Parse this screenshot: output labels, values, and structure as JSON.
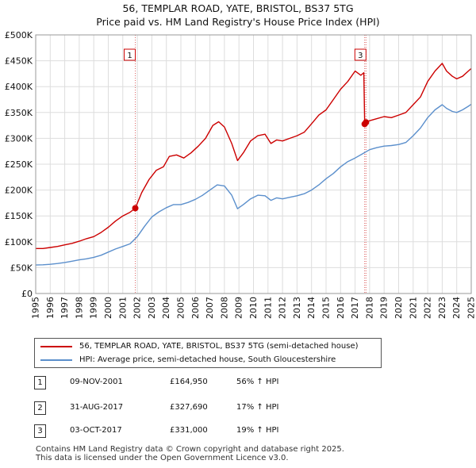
{
  "title_line1": "56, TEMPLAR ROAD, YATE, BRISTOL, BS37 5TG",
  "title_line2": "Price paid vs. HM Land Registry's House Price Index (HPI)",
  "colors": {
    "property": "#cc0000",
    "hpi": "#5b8fcc",
    "grid": "#dddddd",
    "marker": "#cc0000"
  },
  "chart_data": {
    "type": "line",
    "title": "Price paid vs. HM Land Registry's House Price Index (HPI)",
    "xlabel": "",
    "ylabel": "",
    "xlim": [
      1995,
      2025
    ],
    "ylim": [
      0,
      500000
    ],
    "y_ticks": [
      0,
      50000,
      100000,
      150000,
      200000,
      250000,
      300000,
      350000,
      400000,
      450000,
      500000
    ],
    "y_tick_labels": [
      "£0",
      "£50K",
      "£100K",
      "£150K",
      "£200K",
      "£250K",
      "£300K",
      "£350K",
      "£400K",
      "£450K",
      "£500K"
    ],
    "x_ticks": [
      1995,
      1996,
      1997,
      1998,
      1999,
      2000,
      2001,
      2002,
      2003,
      2004,
      2005,
      2006,
      2007,
      2008,
      2009,
      2010,
      2011,
      2012,
      2013,
      2014,
      2015,
      2016,
      2017,
      2018,
      2019,
      2020,
      2021,
      2022,
      2023,
      2024,
      2025
    ],
    "grid": true,
    "series": [
      {
        "name": "56, TEMPLAR ROAD, YATE, BRISTOL, BS37 5TG (semi-detached house)",
        "x": [
          1995.0,
          1995.5,
          1996.0,
          1996.5,
          1997.0,
          1997.5,
          1998.0,
          1998.5,
          1999.0,
          1999.5,
          2000.0,
          2000.5,
          2001.0,
          2001.5,
          2001.86,
          2002.3,
          2002.8,
          2003.3,
          2003.8,
          2004.2,
          2004.7,
          2005.2,
          2005.7,
          2006.2,
          2006.7,
          2007.2,
          2007.6,
          2008.0,
          2008.5,
          2008.9,
          2009.3,
          2009.8,
          2010.3,
          2010.8,
          2011.2,
          2011.6,
          2012.0,
          2012.5,
          2013.0,
          2013.5,
          2014.0,
          2014.5,
          2015.0,
          2015.5,
          2016.0,
          2016.5,
          2017.0,
          2017.4,
          2017.6,
          2017.66,
          2017.75,
          2018.0,
          2018.5,
          2019.0,
          2019.5,
          2020.0,
          2020.5,
          2021.0,
          2021.5,
          2022.0,
          2022.5,
          2023.0,
          2023.3,
          2023.7,
          2024.0,
          2024.4,
          2024.8,
          2025.0
        ],
        "values": [
          87000,
          87000,
          89000,
          91000,
          94000,
          97000,
          101000,
          106000,
          110000,
          118000,
          128000,
          140000,
          150000,
          157000,
          164950,
          195000,
          220000,
          238000,
          245000,
          265000,
          268000,
          262000,
          272000,
          285000,
          300000,
          325000,
          332000,
          322000,
          290000,
          257000,
          272000,
          295000,
          305000,
          308000,
          290000,
          297000,
          295000,
          300000,
          305000,
          312000,
          328000,
          345000,
          355000,
          375000,
          395000,
          410000,
          430000,
          422000,
          427000,
          327690,
          331000,
          334000,
          338000,
          342000,
          340000,
          345000,
          350000,
          365000,
          380000,
          410000,
          430000,
          445000,
          430000,
          420000,
          415000,
          420000,
          430000,
          435000
        ]
      },
      {
        "name": "HPI: Average price, semi-detached house, South Gloucestershire",
        "x": [
          1995.0,
          1995.5,
          1996.0,
          1996.5,
          1997.0,
          1997.5,
          1998.0,
          1998.5,
          1999.0,
          1999.5,
          2000.0,
          2000.5,
          2001.0,
          2001.5,
          2002.0,
          2002.5,
          2003.0,
          2003.5,
          2004.0,
          2004.5,
          2005.0,
          2005.5,
          2006.0,
          2006.5,
          2007.0,
          2007.5,
          2008.0,
          2008.5,
          2008.9,
          2009.3,
          2009.8,
          2010.3,
          2010.8,
          2011.2,
          2011.6,
          2012.0,
          2012.5,
          2013.0,
          2013.5,
          2014.0,
          2014.5,
          2015.0,
          2015.5,
          2016.0,
          2016.5,
          2017.0,
          2017.5,
          2018.0,
          2018.5,
          2019.0,
          2019.5,
          2020.0,
          2020.5,
          2021.0,
          2021.5,
          2022.0,
          2022.5,
          2023.0,
          2023.3,
          2023.7,
          2024.0,
          2024.4,
          2024.8,
          2025.0
        ],
        "values": [
          55000,
          55500,
          56500,
          58000,
          60000,
          62500,
          65000,
          67000,
          70000,
          74000,
          80000,
          86000,
          91000,
          96000,
          110000,
          130000,
          148000,
          158000,
          166000,
          172000,
          172000,
          176000,
          182000,
          190000,
          200000,
          210000,
          208000,
          190000,
          164000,
          172000,
          183000,
          190000,
          189000,
          180000,
          185000,
          183000,
          186000,
          189000,
          193000,
          200000,
          210000,
          222000,
          232000,
          245000,
          255000,
          262000,
          270000,
          278000,
          282000,
          285000,
          286000,
          288000,
          292000,
          305000,
          320000,
          340000,
          355000,
          365000,
          358000,
          352000,
          350000,
          355000,
          362000,
          366000
        ]
      }
    ],
    "transactions": [
      {
        "marker": "1",
        "x": 2001.86,
        "date": "09-NOV-2001",
        "price": 164950,
        "price_label": "£164,950",
        "hpi_change": "56% ↑ HPI"
      },
      {
        "marker": "2",
        "x": 2017.66,
        "date": "31-AUG-2017",
        "price": 327690,
        "price_label": "£327,690",
        "hpi_change": "17% ↑ HPI"
      },
      {
        "marker": "3",
        "x": 2017.75,
        "date": "03-OCT-2017",
        "price": 331000,
        "price_label": "£331,000",
        "hpi_change": "19% ↑ HPI"
      }
    ],
    "chart_markers_shown": [
      "1",
      "3"
    ],
    "legend_position": "below"
  },
  "legend": {
    "property_label": "56, TEMPLAR ROAD, YATE, BRISTOL, BS37 5TG (semi-detached house)",
    "hpi_label": "HPI: Average price, semi-detached house, South Gloucestershire"
  },
  "table": [
    {
      "marker": "1",
      "date": "09-NOV-2001",
      "price": "£164,950",
      "hpi": "56% ↑ HPI"
    },
    {
      "marker": "2",
      "date": "31-AUG-2017",
      "price": "£327,690",
      "hpi": "17% ↑ HPI"
    },
    {
      "marker": "3",
      "date": "03-OCT-2017",
      "price": "£331,000",
      "hpi": "19% ↑ HPI"
    }
  ],
  "footer_line1": "Contains HM Land Registry data © Crown copyright and database right 2025.",
  "footer_line2": "This data is licensed under the Open Government Licence v3.0."
}
